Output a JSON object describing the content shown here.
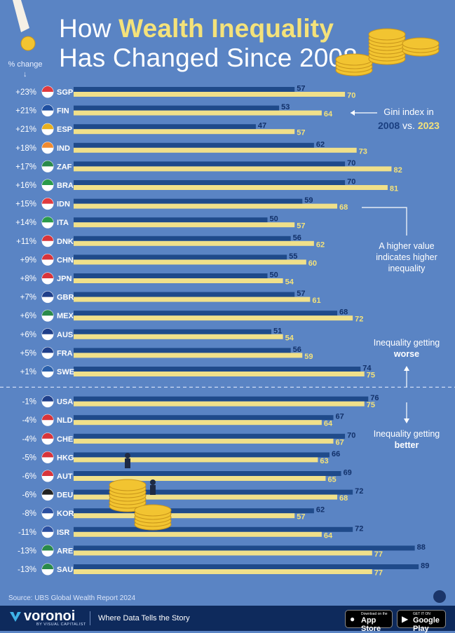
{
  "title": {
    "line1_prefix": "How ",
    "line1_highlight": "Wealth Inequality",
    "line2": "Has Changed Since 2008"
  },
  "pct_header": "% change",
  "annotations": {
    "gini_line1": "Gini index in",
    "gini_year1": "2008",
    "gini_vs": "vs.",
    "gini_year2": "2023",
    "higher_value": "A higher value indicates higher inequality",
    "worse_prefix": "Inequality getting ",
    "worse_word": "worse",
    "better_prefix": "Inequality getting ",
    "better_word": "better"
  },
  "colors": {
    "background": "#5a84c4",
    "bar_2008": "#1f4a8a",
    "bar_2023": "#f0e08a",
    "footer": "#0e2a5c"
  },
  "chart_data": {
    "type": "bar",
    "orientation": "horizontal",
    "title": "How Wealth Inequality Has Changed Since 2008",
    "series": [
      {
        "name": "2008",
        "values": [
          57,
          53,
          47,
          62,
          70,
          70,
          59,
          50,
          56,
          55,
          50,
          57,
          68,
          51,
          56,
          74,
          76,
          67,
          70,
          66,
          69,
          72,
          62,
          72,
          88,
          89
        ]
      },
      {
        "name": "2023",
        "values": [
          70,
          64,
          57,
          73,
          82,
          81,
          68,
          57,
          62,
          60,
          54,
          61,
          72,
          54,
          59,
          75,
          75,
          64,
          67,
          63,
          65,
          68,
          57,
          64,
          77,
          77
        ]
      }
    ],
    "categories": [
      "SGP",
      "FIN",
      "ESP",
      "IND",
      "ZAF",
      "BRA",
      "IDN",
      "ITA",
      "DNK",
      "CHN",
      "JPN",
      "GBR",
      "MEX",
      "AUS",
      "FRA",
      "SWE",
      "USA",
      "NLD",
      "CHE",
      "HKG",
      "AUT",
      "DEU",
      "KOR",
      "ISR",
      "ARE",
      "SAU"
    ],
    "pct_change": [
      "+23%",
      "+21%",
      "+21%",
      "+18%",
      "+17%",
      "+16%",
      "+15%",
      "+14%",
      "+11%",
      "+9%",
      "+8%",
      "+7%",
      "+6%",
      "+6%",
      "+5%",
      "+1%",
      "-1%",
      "-4%",
      "-4%",
      "-5%",
      "-6%",
      "-6%",
      "-8%",
      "-11%",
      "-13%",
      "-13%"
    ],
    "flags": [
      "flag-sgp",
      "flag-fin",
      "flag-esp",
      "flag-ind",
      "flag-zaf",
      "flag-bra",
      "flag-idn",
      "flag-ita",
      "flag-dnk",
      "flag-chn",
      "flag-jpn",
      "flag-gbr",
      "flag-mex",
      "flag-aus",
      "flag-fra",
      "flag-swe",
      "flag-usa",
      "flag-nld",
      "flag-che",
      "flag-hkg",
      "flag-aut",
      "flag-deu",
      "flag-kor",
      "flag-isr",
      "flag-are",
      "flag-sau"
    ],
    "xlim": [
      0,
      90
    ],
    "grid": false,
    "legend": "right"
  },
  "source": "Source: UBS Global Wealth Report 2024",
  "footer": {
    "logo": "voronoi",
    "logo_sub": "BY VISUAL CAPITALIST",
    "tagline": "Where Data Tells the Story",
    "appstore_small": "Download on the",
    "appstore_big": "App Store",
    "googleplay_small": "GET IT ON",
    "googleplay_big": "Google Play"
  }
}
